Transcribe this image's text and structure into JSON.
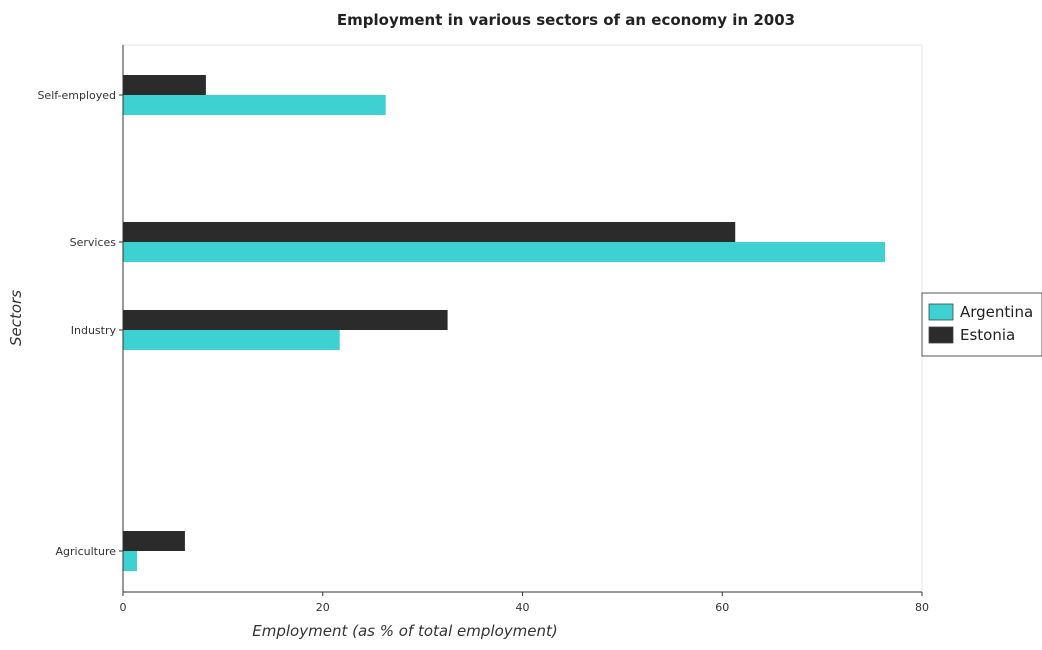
{
  "chart_data": {
    "type": "bar",
    "orientation": "horizontal",
    "title": "Employment in various sectors of an economy in 2003",
    "xlabel": "Employment (as % of total employment)",
    "ylabel": "Sectors",
    "categories": [
      "Agriculture",
      "Industry",
      "Services",
      "Self-employed"
    ],
    "series": [
      {
        "name": "Argentina",
        "color": "#3ed1d1",
        "values": [
          1.4,
          21.7,
          76.3,
          26.3
        ]
      },
      {
        "name": "Estonia",
        "color": "#2b2b2b",
        "values": [
          6.2,
          32.5,
          61.3,
          8.3
        ]
      }
    ],
    "xlim": [
      0,
      80
    ],
    "xticks": [
      0,
      20,
      40,
      60,
      80
    ],
    "grid": false,
    "legend_position": "right"
  }
}
